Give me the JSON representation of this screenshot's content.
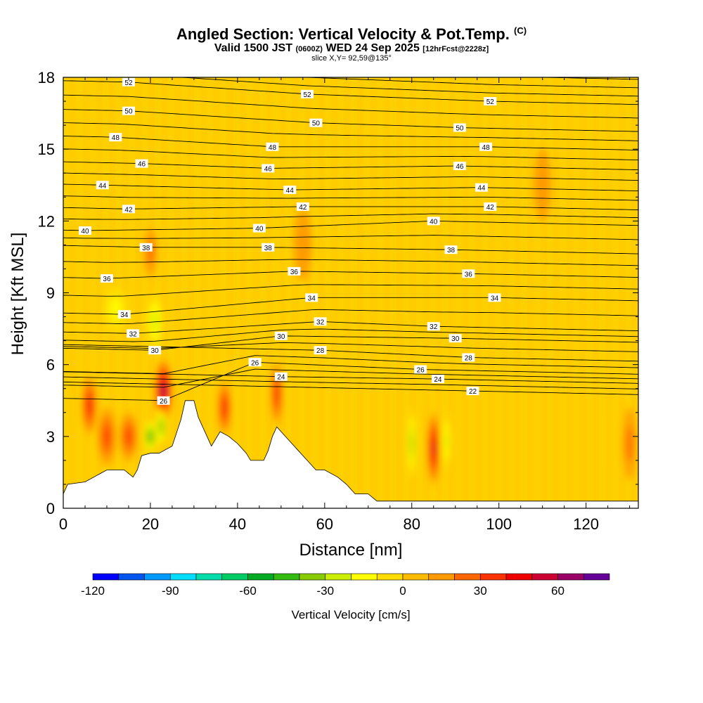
{
  "title": {
    "main": "Angled Section: Vertical Velocity & Pot.Temp.",
    "copyright": "(C)",
    "valid_prefix": "Valid 1500 JST",
    "valid_zulu": "(0600Z)",
    "valid_date": "WED 24 Sep 2025",
    "forecast": "[12hrFcst@2228z]",
    "slice": "slice X,Y= 92,59@135°"
  },
  "colors": {
    "background_field": "#ffcc00",
    "terrain": "#ffffff",
    "contour": "#000000",
    "colorbar": [
      "#0000ff",
      "#0055ee",
      "#0099ff",
      "#00ddff",
      "#00ddaa",
      "#00cc66",
      "#00aa22",
      "#33bb11",
      "#88cc00",
      "#ccee00",
      "#ffff00",
      "#ffdd00",
      "#ffbb00",
      "#ff9900",
      "#ff6600",
      "#ff3300",
      "#ee0000",
      "#cc0033",
      "#990066",
      "#660099"
    ]
  },
  "chart_data": {
    "type": "heatmap",
    "subtype": "vertical cross-section with isentrope contours",
    "xlabel": "Distance [nm]",
    "ylabel": "Height [Kft MSL]",
    "xlim": [
      0,
      132
    ],
    "ylim": [
      0,
      18
    ],
    "xticks": [
      0,
      20,
      40,
      60,
      80,
      100,
      120
    ],
    "yticks": [
      0,
      3,
      6,
      9,
      12,
      15,
      18
    ],
    "colorbar": {
      "label": "Vertical Velocity [cm/s]",
      "min": -120,
      "max": 80,
      "step": 10,
      "tick_values": [
        -120,
        -90,
        -60,
        -30,
        0,
        30,
        60
      ]
    },
    "terrain_profile": [
      {
        "x": 0,
        "y": 0.6
      },
      {
        "x": 1,
        "y": 1
      },
      {
        "x": 5,
        "y": 1.1
      },
      {
        "x": 10,
        "y": 1.6
      },
      {
        "x": 14,
        "y": 1.6
      },
      {
        "x": 16,
        "y": 1.3
      },
      {
        "x": 17,
        "y": 1.6
      },
      {
        "x": 18,
        "y": 2.2
      },
      {
        "x": 20,
        "y": 2.3
      },
      {
        "x": 22,
        "y": 2.3
      },
      {
        "x": 25,
        "y": 2.6
      },
      {
        "x": 27,
        "y": 3.7
      },
      {
        "x": 28,
        "y": 4.5
      },
      {
        "x": 30,
        "y": 4.5
      },
      {
        "x": 31,
        "y": 3.8
      },
      {
        "x": 33,
        "y": 3
      },
      {
        "x": 34,
        "y": 2.6
      },
      {
        "x": 36,
        "y": 3.2
      },
      {
        "x": 38,
        "y": 3
      },
      {
        "x": 40,
        "y": 2.7
      },
      {
        "x": 42,
        "y": 2.3
      },
      {
        "x": 43,
        "y": 2
      },
      {
        "x": 46,
        "y": 2
      },
      {
        "x": 47,
        "y": 2.4
      },
      {
        "x": 48,
        "y": 3
      },
      {
        "x": 49,
        "y": 3.4
      },
      {
        "x": 50,
        "y": 3.2
      },
      {
        "x": 52,
        "y": 2.8
      },
      {
        "x": 54,
        "y": 2.4
      },
      {
        "x": 56,
        "y": 2
      },
      {
        "x": 58,
        "y": 1.6
      },
      {
        "x": 60,
        "y": 1.6
      },
      {
        "x": 63,
        "y": 1.3
      },
      {
        "x": 65,
        "y": 1
      },
      {
        "x": 67,
        "y": 0.6
      },
      {
        "x": 70,
        "y": 0.6
      },
      {
        "x": 72,
        "y": 0.3
      },
      {
        "x": 132,
        "y": 0.3
      }
    ],
    "vertical_velocity_cells": [
      {
        "x": 6,
        "y": 4.3,
        "rx": 1.6,
        "ry": 1.2,
        "value": 40
      },
      {
        "x": 10,
        "y": 3,
        "rx": 2,
        "ry": 1.2,
        "value": 30
      },
      {
        "x": 15,
        "y": 3,
        "rx": 2,
        "ry": 1,
        "value": 30
      },
      {
        "x": 23,
        "y": 4.9,
        "rx": 2,
        "ry": 1.3,
        "value": 60
      },
      {
        "x": 22.5,
        "y": 3.4,
        "rx": 1.2,
        "ry": 0.8,
        "value": -50
      },
      {
        "x": 20,
        "y": 3,
        "rx": 1.5,
        "ry": 0.7,
        "value": -60
      },
      {
        "x": 21,
        "y": 7.8,
        "rx": 2,
        "ry": 1.2,
        "value": -30
      },
      {
        "x": 12,
        "y": 8.3,
        "rx": 3,
        "ry": 1,
        "value": -20
      },
      {
        "x": 37,
        "y": 4.2,
        "rx": 1.4,
        "ry": 1.1,
        "value": 40
      },
      {
        "x": 49,
        "y": 4.8,
        "rx": 1.2,
        "ry": 1.3,
        "value": 40
      },
      {
        "x": 80,
        "y": 2.7,
        "rx": 1,
        "ry": 1.5,
        "value": -40
      },
      {
        "x": 85,
        "y": 2.5,
        "rx": 1.3,
        "ry": 1.5,
        "value": 50
      },
      {
        "x": 88,
        "y": 2.8,
        "rx": 1,
        "ry": 1.2,
        "value": -30
      },
      {
        "x": 20,
        "y": 10.7,
        "rx": 1.5,
        "ry": 1,
        "value": 20
      },
      {
        "x": 55,
        "y": 11,
        "rx": 2,
        "ry": 1.5,
        "value": 15
      },
      {
        "x": 110,
        "y": 13.5,
        "rx": 2,
        "ry": 1.5,
        "value": 15
      },
      {
        "x": 130,
        "y": 2.7,
        "rx": 1.5,
        "ry": 1.5,
        "value": 20
      }
    ],
    "contour_labels": [
      {
        "text": "52",
        "x": 15,
        "y": 17.8
      },
      {
        "text": "52",
        "x": 56,
        "y": 17.3
      },
      {
        "text": "52",
        "x": 98,
        "y": 17
      },
      {
        "text": "50",
        "x": 15,
        "y": 16.6
      },
      {
        "text": "50",
        "x": 58,
        "y": 16.1
      },
      {
        "text": "50",
        "x": 91,
        "y": 15.9
      },
      {
        "text": "48",
        "x": 12,
        "y": 15.5
      },
      {
        "text": "48",
        "x": 48,
        "y": 15.1
      },
      {
        "text": "48",
        "x": 97,
        "y": 15.1
      },
      {
        "text": "46",
        "x": 18,
        "y": 14.4
      },
      {
        "text": "46",
        "x": 47,
        "y": 14.2
      },
      {
        "text": "46",
        "x": 91,
        "y": 14.3
      },
      {
        "text": "44",
        "x": 9,
        "y": 13.5
      },
      {
        "text": "44",
        "x": 52,
        "y": 13.3
      },
      {
        "text": "44",
        "x": 96,
        "y": 13.4
      },
      {
        "text": "42",
        "x": 15,
        "y": 12.5
      },
      {
        "text": "42",
        "x": 55,
        "y": 12.6
      },
      {
        "text": "42",
        "x": 98,
        "y": 12.6
      },
      {
        "text": "40",
        "x": 5,
        "y": 11.6
      },
      {
        "text": "40",
        "x": 45,
        "y": 11.7
      },
      {
        "text": "40",
        "x": 85,
        "y": 12
      },
      {
        "text": "38",
        "x": 19,
        "y": 10.9
      },
      {
        "text": "38",
        "x": 47,
        "y": 10.9
      },
      {
        "text": "38",
        "x": 89,
        "y": 10.8
      },
      {
        "text": "36",
        "x": 10,
        "y": 9.6
      },
      {
        "text": "36",
        "x": 53,
        "y": 9.9
      },
      {
        "text": "36",
        "x": 93,
        "y": 9.8
      },
      {
        "text": "34",
        "x": 14,
        "y": 8.1
      },
      {
        "text": "34",
        "x": 57,
        "y": 8.8
      },
      {
        "text": "34",
        "x": 99,
        "y": 8.8
      },
      {
        "text": "32",
        "x": 16,
        "y": 7.3
      },
      {
        "text": "32",
        "x": 59,
        "y": 7.8
      },
      {
        "text": "32",
        "x": 85,
        "y": 7.6
      },
      {
        "text": "30",
        "x": 21,
        "y": 6.6
      },
      {
        "text": "30",
        "x": 50,
        "y": 7.2
      },
      {
        "text": "30",
        "x": 90,
        "y": 7.1
      },
      {
        "text": "28",
        "x": 59,
        "y": 6.6
      },
      {
        "text": "28",
        "x": 93,
        "y": 6.3
      },
      {
        "text": "26",
        "x": 44,
        "y": 6.1
      },
      {
        "text": "26",
        "x": 82,
        "y": 5.8
      },
      {
        "text": "24",
        "x": 50,
        "y": 5.5
      },
      {
        "text": "24",
        "x": 86,
        "y": 5.4
      },
      {
        "text": "22",
        "x": 94,
        "y": 4.9
      },
      {
        "text": "26",
        "x": 23,
        "y": 4.5
      }
    ]
  }
}
